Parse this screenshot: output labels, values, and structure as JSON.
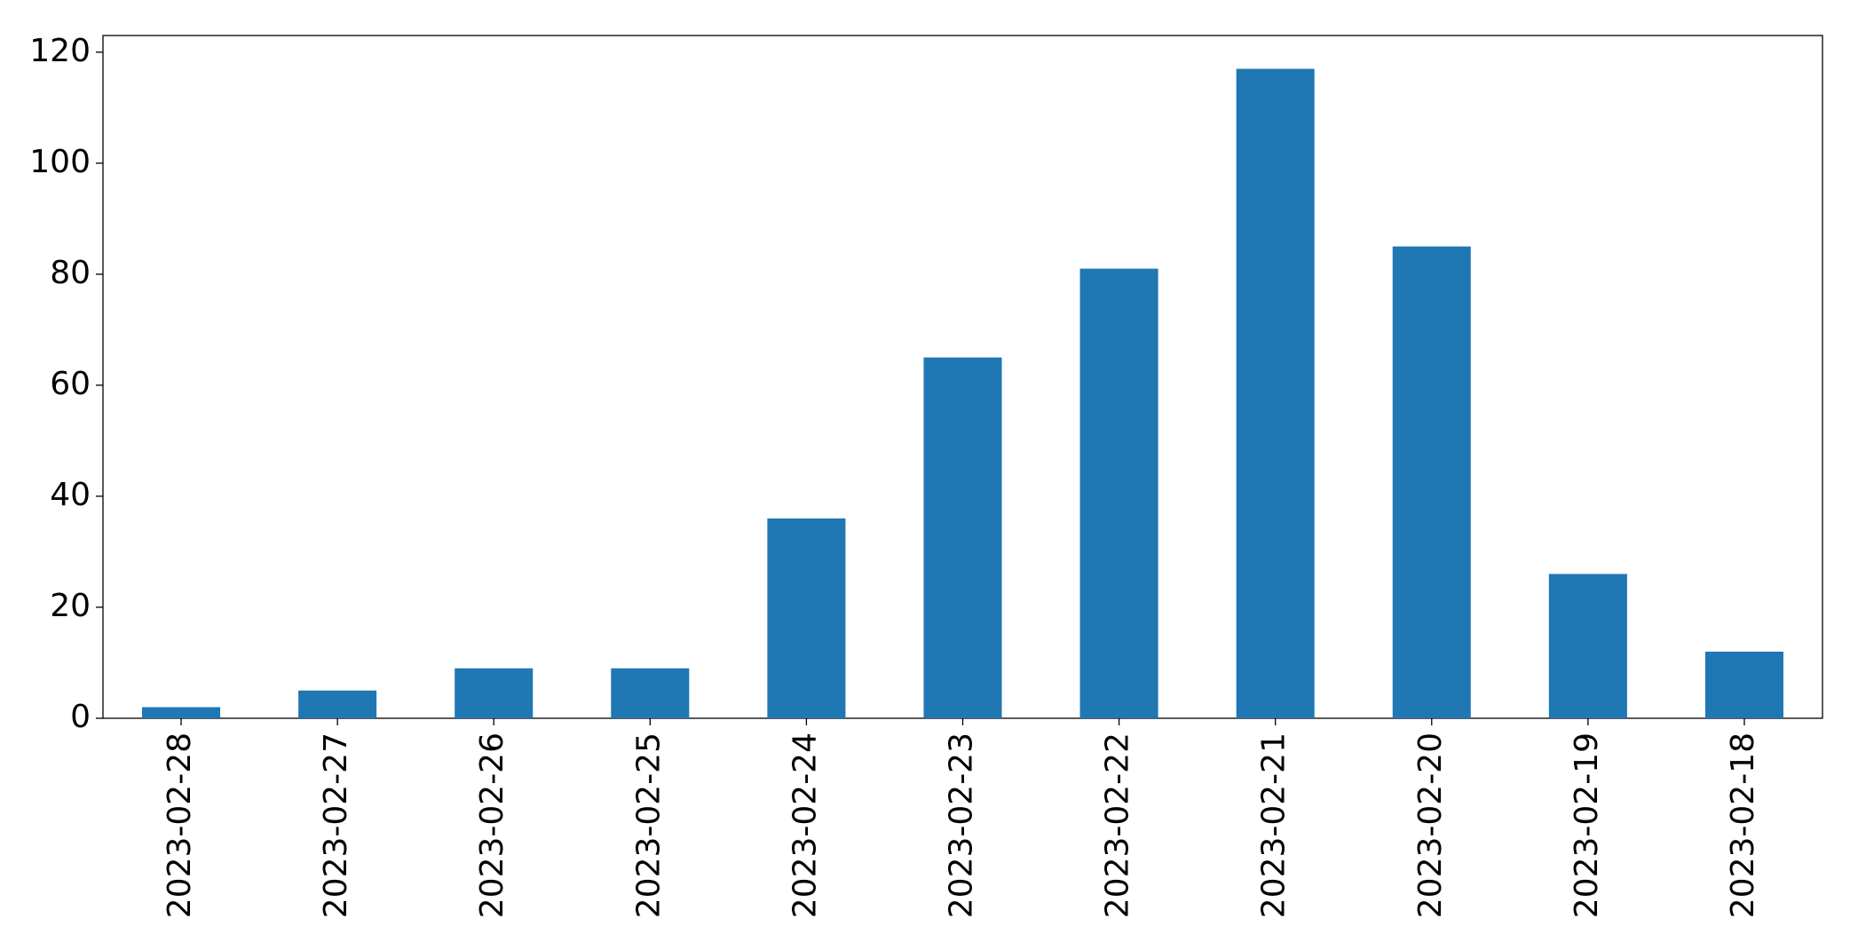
{
  "chart_data": {
    "type": "bar",
    "categories": [
      "2023-02-28",
      "2023-02-27",
      "2023-02-26",
      "2023-02-25",
      "2023-02-24",
      "2023-02-23",
      "2023-02-22",
      "2023-02-21",
      "2023-02-20",
      "2023-02-19",
      "2023-02-18"
    ],
    "values": [
      2,
      5,
      9,
      9,
      36,
      65,
      81,
      117,
      85,
      26,
      12
    ],
    "color": "#1f77b4",
    "ylim": [
      0,
      123
    ],
    "yticks": [
      0,
      20,
      40,
      60,
      80,
      100,
      120
    ],
    "grid": false
  }
}
